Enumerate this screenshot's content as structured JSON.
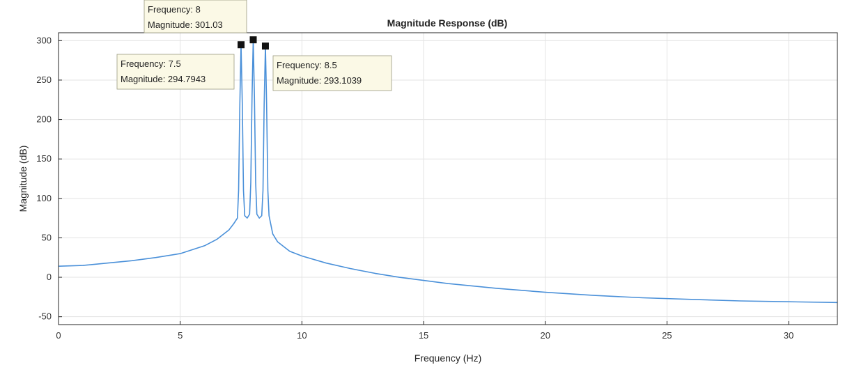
{
  "chart_data": {
    "type": "line",
    "title": "Magnitude Response (dB)",
    "xlabel": "Frequency (Hz)",
    "ylabel": "Magnitude (dB)",
    "xlim": [
      0,
      32
    ],
    "ylim": [
      -60,
      310
    ],
    "xticks": [
      0,
      5,
      10,
      15,
      20,
      25,
      30
    ],
    "yticks": [
      -50,
      0,
      50,
      100,
      150,
      200,
      250,
      300
    ],
    "grid": true,
    "line_color": "#4a90d9",
    "series": [
      {
        "x": [
          0,
          1,
          2,
          3,
          4,
          5,
          6,
          6.5,
          7,
          7.2,
          7.35,
          7.4,
          7.45,
          7.5,
          7.55,
          7.6,
          7.65,
          7.75,
          7.85,
          7.9,
          7.95,
          8,
          8.05,
          8.1,
          8.15,
          8.25,
          8.35,
          8.4,
          8.45,
          8.5,
          8.55,
          8.6,
          8.65,
          8.8,
          9,
          9.5,
          10,
          11,
          12,
          13,
          14,
          15,
          16,
          18,
          20,
          22,
          24,
          26,
          28,
          30,
          32
        ],
        "y": [
          14,
          15,
          18,
          21,
          25,
          30,
          40,
          48,
          60,
          68,
          75,
          110,
          220,
          294.79,
          220,
          110,
          78,
          75,
          80,
          120,
          230,
          301.03,
          230,
          120,
          80,
          75,
          78,
          110,
          220,
          293.1,
          220,
          110,
          78,
          55,
          45,
          33,
          27,
          18,
          11,
          5,
          0,
          -4,
          -8,
          -14,
          -19,
          -23,
          -26,
          -28,
          -30,
          -31,
          -32
        ]
      }
    ],
    "datatips": [
      {
        "x": 8,
        "y": 301.03,
        "line1": "Frequency: 8",
        "line2": "Magnitude: 301.03"
      },
      {
        "x": 7.5,
        "y": 294.7943,
        "line1": "Frequency: 7.5",
        "line2": "Magnitude: 294.7943"
      },
      {
        "x": 8.5,
        "y": 293.1039,
        "line1": "Frequency: 8.5",
        "line2": "Magnitude: 293.1039"
      }
    ]
  }
}
